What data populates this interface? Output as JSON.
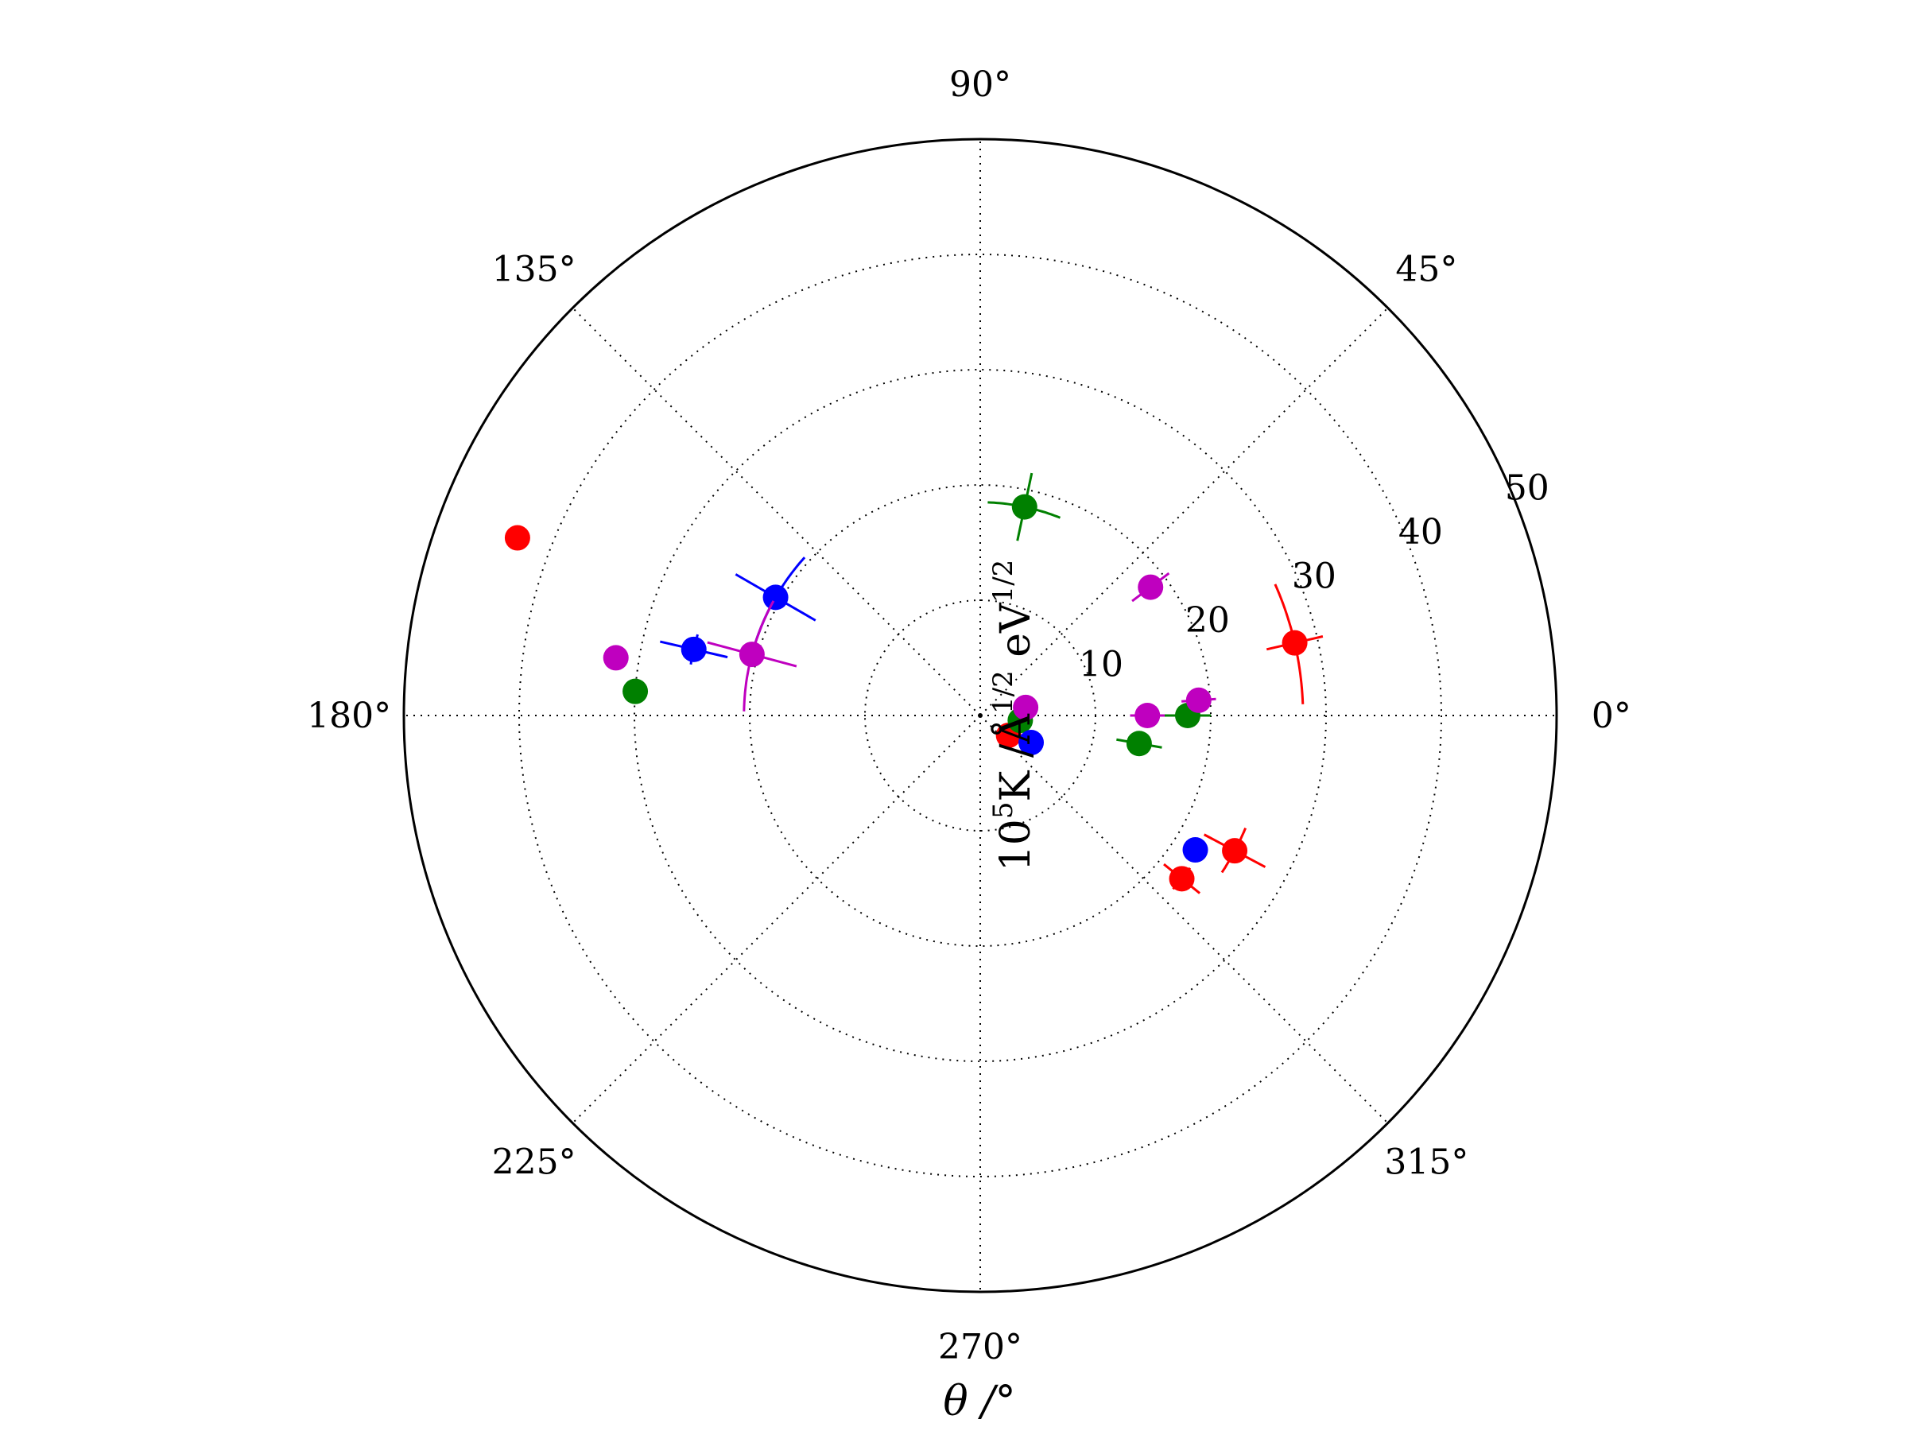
{
  "chart_data": {
    "type": "scatter",
    "projection": "polar",
    "title": "",
    "xlabel": "θ /°",
    "ylabel": "10⁵K /Å^{1/2} eV^{1/2}",
    "ylabel_parts": {
      "base": "10",
      "exp": "5",
      "mid": "K  /Å",
      "exp2": "1/2",
      "unit": " eV",
      "exp3": "1/2"
    },
    "r_range": [
      0,
      50
    ],
    "r_ticks": [
      10,
      20,
      30,
      40,
      50
    ],
    "r_tick_labels": [
      "10",
      "20",
      "30",
      "40",
      "50"
    ],
    "theta_ticks": [
      0,
      45,
      90,
      135,
      180,
      225,
      270,
      315
    ],
    "theta_tick_labels": [
      "0°",
      "45°",
      "90°",
      "135°",
      "180°",
      "225°",
      "270°",
      "315°"
    ],
    "grid": true,
    "legend": "none",
    "series": [
      {
        "color": "#ff0000",
        "points": [
          {
            "theta": 159,
            "r": 43,
            "dr": 1,
            "dtheta": 0
          },
          {
            "theta": 13,
            "r": 28,
            "dr": 2.5,
            "dtheta": 11
          },
          {
            "theta": 332,
            "r": 25,
            "dr": 3,
            "dtheta": 5
          },
          {
            "theta": 321,
            "r": 22.5,
            "dr": 2,
            "dtheta": 3
          },
          {
            "theta": 325,
            "r": 3,
            "dr": 0,
            "dtheta": 0
          }
        ]
      },
      {
        "color": "#008000",
        "points": [
          {
            "theta": 78,
            "r": 18.5,
            "dr": 3,
            "dtheta": 10
          },
          {
            "theta": 176,
            "r": 30,
            "dr": 0.5,
            "dtheta": 0
          },
          {
            "theta": 350,
            "r": 14,
            "dr": 2,
            "dtheta": 4
          },
          {
            "theta": 0,
            "r": 18,
            "dr": 2,
            "dtheta": 3
          },
          {
            "theta": 353,
            "r": 3.5,
            "dr": 0,
            "dtheta": 0
          }
        ]
      },
      {
        "color": "#0000ff",
        "points": [
          {
            "theta": 150,
            "r": 20.5,
            "dr": 4,
            "dtheta": 12
          },
          {
            "theta": 167,
            "r": 25.5,
            "dr": 3,
            "dtheta": 3
          },
          {
            "theta": 328,
            "r": 22,
            "dr": 0,
            "dtheta": 0
          },
          {
            "theta": 332,
            "r": 5,
            "dr": 0,
            "dtheta": 0
          }
        ]
      },
      {
        "color": "#bf00bf",
        "points": [
          {
            "theta": 165,
            "r": 20.5,
            "dr": 4,
            "dtheta": 14
          },
          {
            "theta": 171,
            "r": 32,
            "dr": 0.5,
            "dtheta": 0
          },
          {
            "theta": 37,
            "r": 18.5,
            "dr": 2,
            "dtheta": 2
          },
          {
            "theta": 4,
            "r": 19,
            "dr": 1.5,
            "dtheta": 3
          },
          {
            "theta": 0,
            "r": 14.5,
            "dr": 1.5,
            "dtheta": 3
          },
          {
            "theta": 10,
            "r": 4,
            "dr": 0,
            "dtheta": 0
          }
        ]
      }
    ]
  }
}
